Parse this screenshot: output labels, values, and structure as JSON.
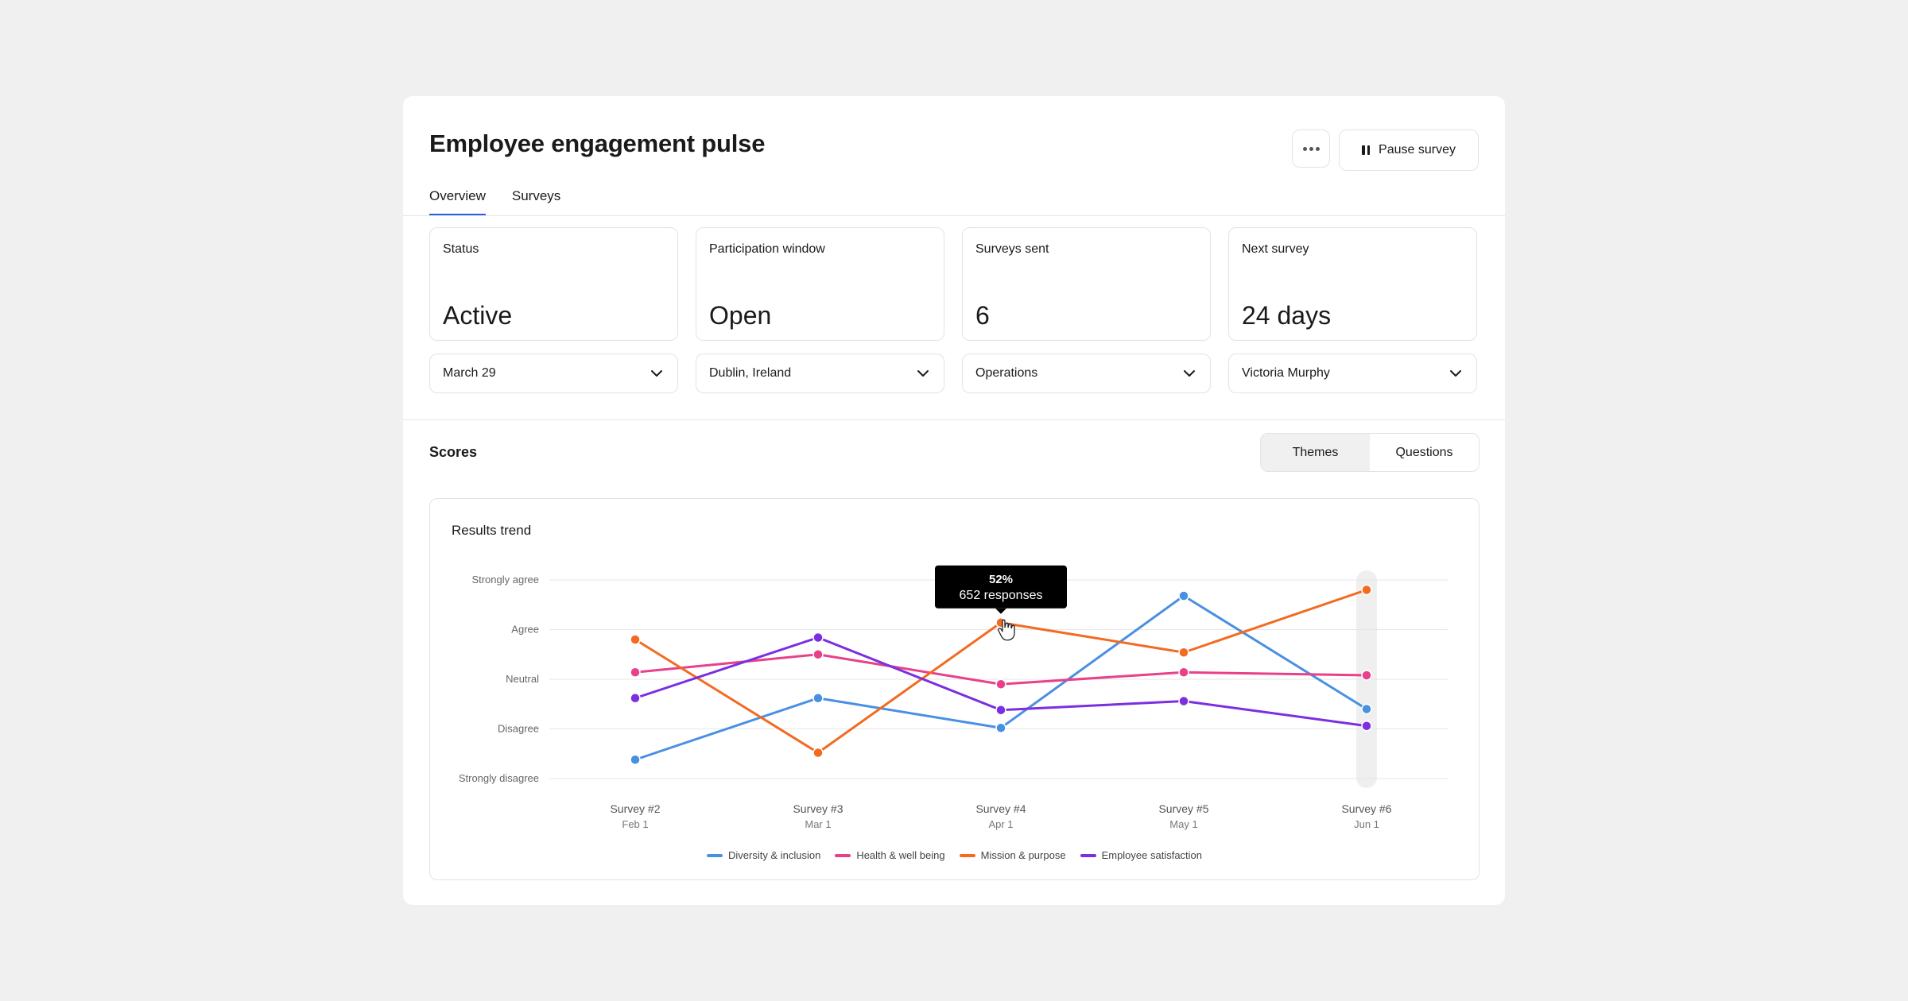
{
  "header": {
    "title": "Employee engagement pulse",
    "more_icon": "ellipsis-icon",
    "pause_label": "Pause survey",
    "pause_icon": "pause-icon"
  },
  "tabs": [
    {
      "label": "Overview",
      "active": true
    },
    {
      "label": "Surveys",
      "active": false
    }
  ],
  "stats": [
    {
      "label": "Status",
      "value": "Active"
    },
    {
      "label": "Participation window",
      "value": "Open"
    },
    {
      "label": "Surveys sent",
      "value": "6"
    },
    {
      "label": "Next survey",
      "value": "24 days"
    }
  ],
  "filters": [
    {
      "value": "March 29"
    },
    {
      "value": "Dublin, Ireland"
    },
    {
      "value": "Operations"
    },
    {
      "value": "Victoria Murphy"
    }
  ],
  "scores": {
    "title": "Scores",
    "toggle": [
      {
        "label": "Themes",
        "active": true
      },
      {
        "label": "Questions",
        "active": false
      }
    ]
  },
  "chart_data": {
    "type": "line",
    "title": "Results trend",
    "y_categories": [
      "Strongly disagree",
      "Disagree",
      "Neutral",
      "Agree",
      "Strongly agree"
    ],
    "ylim": [
      1,
      5
    ],
    "x": [
      {
        "label": "Survey #2",
        "date": "Feb 1"
      },
      {
        "label": "Survey #3",
        "date": "Mar 1"
      },
      {
        "label": "Survey #4",
        "date": "Apr 1"
      },
      {
        "label": "Survey #5",
        "date": "May 1"
      },
      {
        "label": "Survey #6",
        "date": "Jun 1"
      }
    ],
    "series": [
      {
        "name": "Diversity & inclusion",
        "color": "#4a90e2",
        "values": [
          1.38,
          2.62,
          2.02,
          4.68,
          2.4
        ]
      },
      {
        "name": "Health & well being",
        "color": "#e8418a",
        "values": [
          3.14,
          3.5,
          2.9,
          3.14,
          3.08
        ]
      },
      {
        "name": "Mission & purpose",
        "color": "#f26b21",
        "values": [
          3.8,
          1.52,
          4.14,
          3.54,
          4.8
        ]
      },
      {
        "name": "Employee satisfaction",
        "color": "#7b2fe0",
        "values": [
          2.62,
          3.84,
          2.38,
          2.56,
          2.06
        ]
      }
    ],
    "highlight_index": 4,
    "tooltip": {
      "value": "52%",
      "responses": "652 responses",
      "series_index": 2,
      "point_index": 2
    },
    "grid": true,
    "legend_position": "bottom"
  }
}
